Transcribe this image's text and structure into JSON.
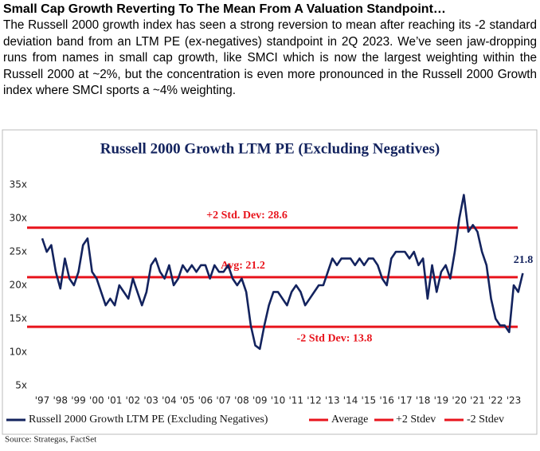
{
  "header": {
    "title": "Small Cap Growth Reverting To The Mean From A Valuation Standpoint…",
    "body": "The Russell 2000 growth index has seen a strong reversion to mean after reaching its -2 standard deviation band from an LTM PE (ex-negatives) standpoint in 2Q 2023. We’ve seen jaw-dropping runs from names in small cap growth, like SMCI which is now the largest weighting within the Russell 2000 at ~2%, but the concentration is even more pronounced  in the Russell 2000 Growth index where SMCI sports a ~4% weighting."
  },
  "chart_data": {
    "type": "line",
    "title": "Russell 2000 Growth LTM PE (Excluding Negatives)",
    "x": [
      1997,
      1997.25,
      1997.5,
      1997.75,
      1998,
      1998.25,
      1998.5,
      1998.75,
      1999,
      1999.25,
      1999.5,
      1999.75,
      2000,
      2000.25,
      2000.5,
      2000.75,
      2001,
      2001.25,
      2001.5,
      2001.75,
      2002,
      2002.25,
      2002.5,
      2002.75,
      2003,
      2003.25,
      2003.5,
      2003.75,
      2004,
      2004.25,
      2004.5,
      2004.75,
      2005,
      2005.25,
      2005.5,
      2005.75,
      2006,
      2006.25,
      2006.5,
      2006.75,
      2007,
      2007.25,
      2007.5,
      2007.75,
      2008,
      2008.25,
      2008.5,
      2008.75,
      2009,
      2009.25,
      2009.5,
      2009.75,
      2010,
      2010.25,
      2010.5,
      2010.75,
      2011,
      2011.25,
      2011.5,
      2011.75,
      2012,
      2012.25,
      2012.5,
      2012.75,
      2013,
      2013.25,
      2013.5,
      2013.75,
      2014,
      2014.25,
      2014.5,
      2014.75,
      2015,
      2015.25,
      2015.5,
      2015.75,
      2016,
      2016.25,
      2016.5,
      2016.75,
      2017,
      2017.25,
      2017.5,
      2017.75,
      2018,
      2018.25,
      2018.5,
      2018.75,
      2019,
      2019.25,
      2019.5,
      2019.75,
      2020,
      2020.25,
      2020.5,
      2020.75,
      2021,
      2021.25,
      2021.5,
      2021.75,
      2022,
      2022.25,
      2022.5,
      2022.75,
      2023,
      2023.25,
      2023.5
    ],
    "series": [
      {
        "name": "Russell 2000 Growth LTM PE (Excluding Negatives)",
        "color": "#13235e",
        "values": [
          27,
          25,
          26,
          22,
          19.5,
          24,
          21,
          20,
          22,
          26,
          27,
          22,
          21,
          19,
          17,
          18,
          17,
          20,
          19,
          18,
          21,
          19,
          17,
          19,
          23,
          24,
          22,
          21,
          23,
          20,
          21,
          23,
          22,
          23,
          22,
          23,
          23,
          21,
          23,
          22,
          22,
          23,
          21,
          20,
          21,
          19,
          14,
          11,
          10.5,
          14,
          17,
          19,
          19,
          18,
          17,
          19,
          20,
          19,
          17,
          18,
          19,
          20,
          20,
          22,
          24,
          23,
          24,
          24,
          24,
          23,
          24,
          23,
          24,
          24,
          23,
          21,
          20,
          24,
          25,
          25,
          25,
          24,
          25,
          23,
          24,
          18,
          23,
          19,
          22,
          23,
          21,
          25,
          30,
          33.5,
          28,
          29,
          28,
          25,
          23,
          18,
          15,
          14,
          14,
          13,
          20,
          19,
          21.8
        ]
      }
    ],
    "end_label": 21.8,
    "reference_lines": [
      {
        "name": "Average",
        "label": "Avg: 21.2",
        "value": 21.2,
        "color": "#e8141c"
      },
      {
        "name": "+2 Stdev",
        "label": "+2 Std. Dev: 28.6",
        "value": 28.6,
        "color": "#e8141c"
      },
      {
        "name": "-2 Stdev",
        "label": "-2 Std Dev: 13.8",
        "value": 13.8,
        "color": "#e8141c"
      }
    ],
    "xlim": [
      1997,
      2023
    ],
    "xticks": [
      {
        "value": 1997,
        "label": "'97"
      },
      {
        "value": 1998,
        "label": "'98"
      },
      {
        "value": 1999,
        "label": "'99"
      },
      {
        "value": 2000,
        "label": "'00"
      },
      {
        "value": 2001,
        "label": "'01"
      },
      {
        "value": 2002,
        "label": "'02"
      },
      {
        "value": 2003,
        "label": "'03"
      },
      {
        "value": 2004,
        "label": "'04"
      },
      {
        "value": 2005,
        "label": "'05"
      },
      {
        "value": 2006,
        "label": "'06"
      },
      {
        "value": 2007,
        "label": "'07"
      },
      {
        "value": 2008,
        "label": "'08"
      },
      {
        "value": 2009,
        "label": "'09"
      },
      {
        "value": 2010,
        "label": "'10"
      },
      {
        "value": 2011,
        "label": "'11"
      },
      {
        "value": 2012,
        "label": "'12"
      },
      {
        "value": 2013,
        "label": "'13"
      },
      {
        "value": 2014,
        "label": "'14"
      },
      {
        "value": 2015,
        "label": "'15"
      },
      {
        "value": 2016,
        "label": "'16"
      },
      {
        "value": 2017,
        "label": "'17"
      },
      {
        "value": 2018,
        "label": "'18"
      },
      {
        "value": 2019,
        "label": "'19"
      },
      {
        "value": 2020,
        "label": "'20"
      },
      {
        "value": 2021,
        "label": "'21"
      },
      {
        "value": 2022,
        "label": "'22"
      },
      {
        "value": 2023,
        "label": "'23"
      }
    ],
    "ylim": [
      5,
      35
    ],
    "yticks": [
      {
        "value": 5,
        "label": "5x"
      },
      {
        "value": 10,
        "label": "10x"
      },
      {
        "value": 15,
        "label": "15x"
      },
      {
        "value": 20,
        "label": "20x"
      },
      {
        "value": 25,
        "label": "25x"
      },
      {
        "value": 30,
        "label": "30x"
      },
      {
        "value": 35,
        "label": "35x"
      }
    ],
    "grid": false,
    "source": "Source: Strategas, FactSet"
  }
}
